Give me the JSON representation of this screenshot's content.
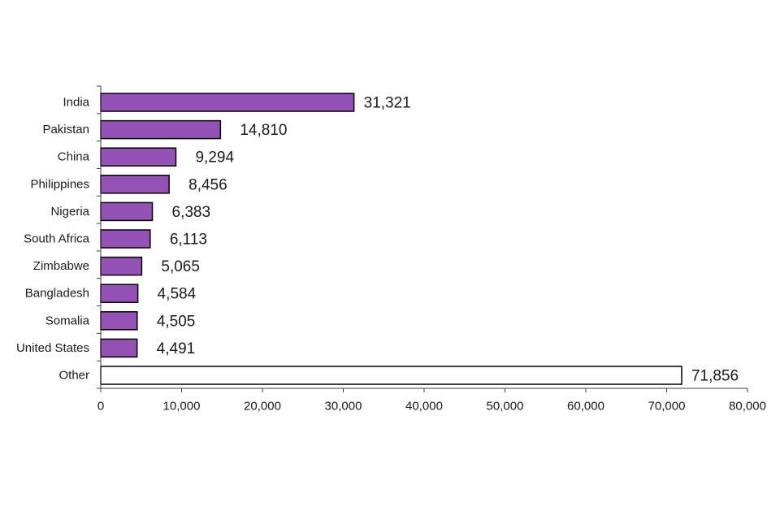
{
  "chart_data": {
    "type": "bar",
    "orientation": "horizontal",
    "title": "",
    "xlabel": "",
    "ylabel": "",
    "categories": [
      "India",
      "Pakistan",
      "China",
      "Philippines",
      "Nigeria",
      "South Africa",
      "Zimbabwe",
      "Bangladesh",
      "Somalia",
      "United States",
      "Other"
    ],
    "values": [
      31321,
      14810,
      9294,
      8456,
      6383,
      6113,
      5065,
      4584,
      4505,
      4491,
      71856
    ],
    "value_labels": [
      "31,321",
      "14,810",
      "9,294",
      "8,456",
      "6,383",
      "6,113",
      "5,065",
      "4,584",
      "4,505",
      "4,491",
      "71,856"
    ],
    "bar_fills": [
      "#9452b5",
      "#9452b5",
      "#9452b5",
      "#9452b5",
      "#9452b5",
      "#9452b5",
      "#9452b5",
      "#9452b5",
      "#9452b5",
      "#9452b5",
      "#ffffff"
    ],
    "xlim": [
      0,
      80000
    ],
    "xticks": [
      0,
      10000,
      20000,
      30000,
      40000,
      50000,
      60000,
      70000,
      80000
    ],
    "xtick_labels": [
      "0",
      "10,000",
      "20,000",
      "30,000",
      "40,000",
      "50,000",
      "60,000",
      "70,000",
      "80,000"
    ],
    "grid": false,
    "legend": "none",
    "colors": {
      "bar": "#9452b5",
      "other_bar": "#ffffff",
      "bar_outline": "#000000",
      "axis": "#404040"
    }
  }
}
